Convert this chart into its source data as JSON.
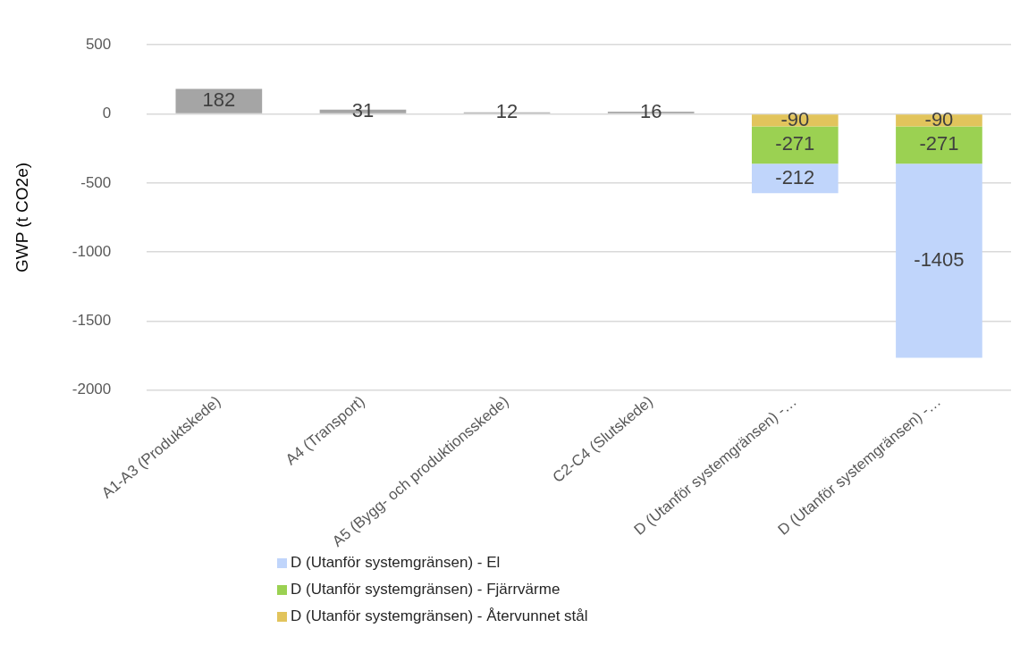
{
  "chart_data": {
    "type": "bar",
    "stacked": true,
    "ylabel": "GWP (t CO2e)",
    "categories": [
      "A1-A3 (Produktskede)",
      "A4 (Transport)",
      "A5 (Bygg- och produktionsskede)",
      "C2-C4 (Slutskede)",
      "D (Utanför systemgränsen) -…",
      "D (Utanför systemgränsen) -…"
    ],
    "series": [
      {
        "color": "#a5a5a5",
        "values": [
          182,
          31,
          12,
          16,
          null,
          null
        ]
      },
      {
        "name": "D (Utanför systemgränsen) - Återvunnet stål",
        "color": "#e2c45c",
        "values": [
          null,
          null,
          null,
          null,
          -90,
          -90
        ]
      },
      {
        "name": "D (Utanför systemgränsen) - Fjärrvärme",
        "color": "#9bd152",
        "values": [
          null,
          null,
          null,
          null,
          -271,
          -271
        ]
      },
      {
        "name": "D (Utanför systemgränsen) - El",
        "color": "#c0d5fb",
        "values": [
          null,
          null,
          null,
          null,
          -212,
          -1405
        ]
      }
    ],
    "ylim": [
      -2000,
      500
    ],
    "yticks": [
      -2000,
      -1500,
      -1000,
      -500,
      0,
      500
    ],
    "grid": "y",
    "legend": "bottom",
    "data_labels": true
  }
}
